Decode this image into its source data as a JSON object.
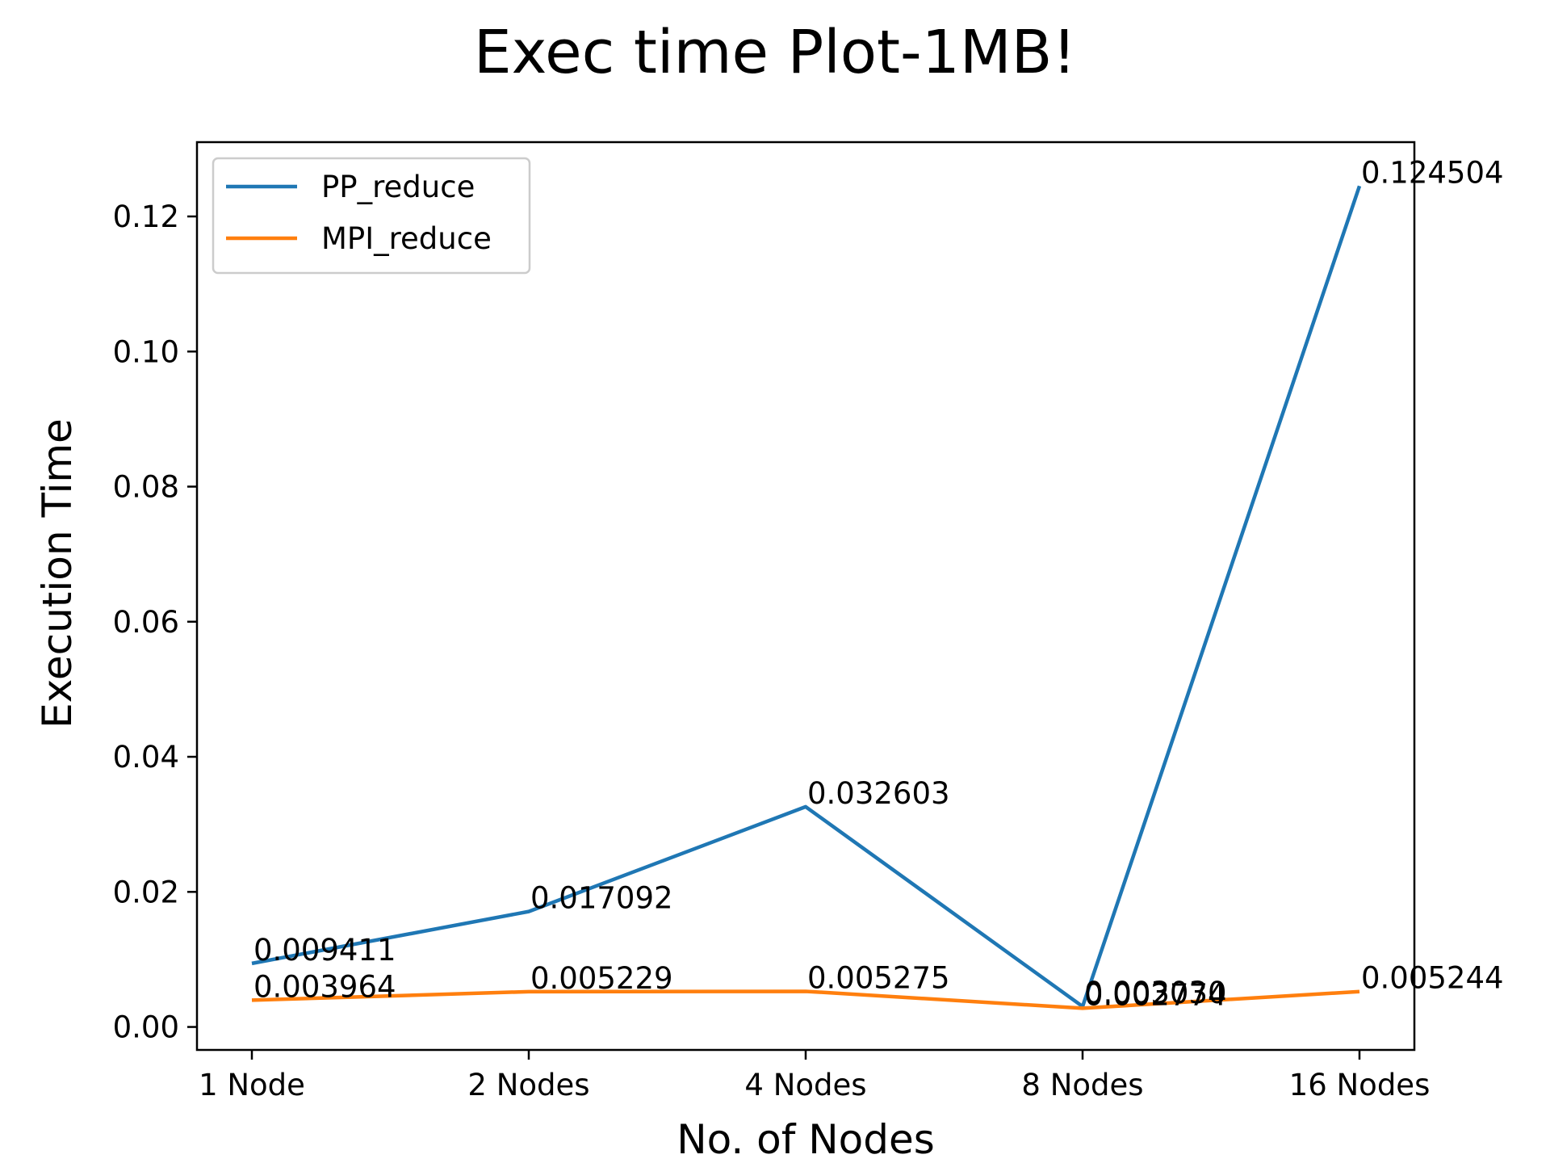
{
  "chart_data": {
    "type": "line",
    "title": "Exec time Plot-1MB!",
    "xlabel": "No. of Nodes",
    "ylabel": "Execution Time",
    "categories": [
      "1 Node",
      "2 Nodes",
      "4 Nodes",
      "8 Nodes",
      "16 Nodes"
    ],
    "ylim": [
      -0.0034,
      0.131
    ],
    "yticks": [
      0.0,
      0.02,
      0.04,
      0.06,
      0.08,
      0.1,
      0.12
    ],
    "ytick_labels": [
      "0.00",
      "0.02",
      "0.04",
      "0.06",
      "0.08",
      "0.10",
      "0.12"
    ],
    "grid": false,
    "legend_position": "upper-left",
    "series": [
      {
        "name": "PP_reduce",
        "color": "#1f77b4",
        "values": [
          0.009411,
          0.017092,
          0.032603,
          0.00303,
          0.124504
        ],
        "labels": [
          "0.009411",
          "0.017092",
          "0.032603",
          "0.003030",
          "0.124504"
        ]
      },
      {
        "name": "MPI_reduce",
        "color": "#ff7f0e",
        "values": [
          0.003964,
          0.005229,
          0.005275,
          0.002774,
          0.005244
        ],
        "labels": [
          "0.003964",
          "0.005229",
          "0.005275",
          "0.002774",
          "0.005244"
        ]
      }
    ]
  }
}
